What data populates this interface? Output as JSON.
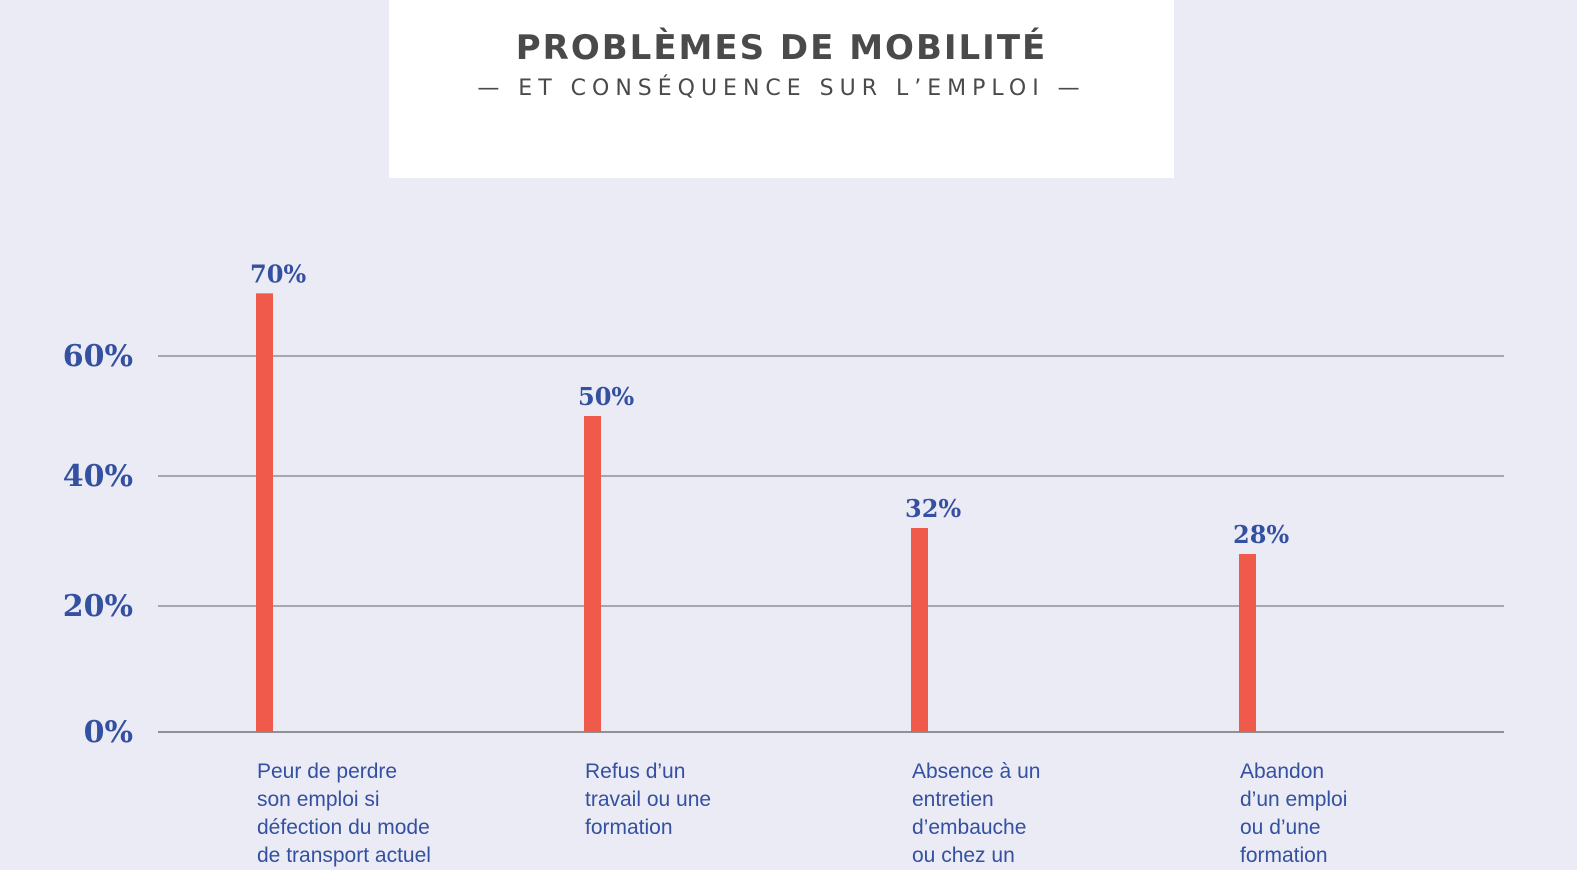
{
  "title": "PROBLÈMES DE MOBILITÉ",
  "subtitle": "— ET CONSÉQUENCE SUR L’EMPLOI —",
  "colors": {
    "bar": "#f05a4b",
    "text": "#3450a0",
    "grid": "#333333",
    "background": "#ebebf5",
    "title": "#4a4a4a"
  },
  "chart_data": {
    "type": "bar",
    "title": "PROBLÈMES DE MOBILITÉ",
    "subtitle": "— ET CONSÉQUENCE SUR L’EMPLOI —",
    "xlabel": "",
    "ylabel": "",
    "ylim": [
      0,
      70
    ],
    "grid": true,
    "yticks": [
      0,
      20,
      40,
      60
    ],
    "ytick_labels": [
      "0%",
      "20%",
      "40%",
      "60%"
    ],
    "categories": [
      "Peur de perdre son emploi si défection du mode de transport actuel",
      "Refus d’un travail ou une formation",
      "Absence à un entretien d’embauche ou chez un",
      "Abandon d’un emploi ou d’une formation"
    ],
    "category_lines": [
      [
        "Peur de perdre",
        "son emploi si",
        "défection du mode",
        "de transport actuel"
      ],
      [
        "Refus d’un",
        "travail ou une",
        "formation"
      ],
      [
        "Absence à un",
        "entretien",
        "d’embauche",
        "ou chez un"
      ],
      [
        "Abandon",
        "d’un emploi",
        "ou d’une",
        "formation"
      ]
    ],
    "values": [
      70,
      50,
      32,
      28
    ],
    "value_labels": [
      "70%",
      "50%",
      "32%",
      "28%"
    ]
  }
}
